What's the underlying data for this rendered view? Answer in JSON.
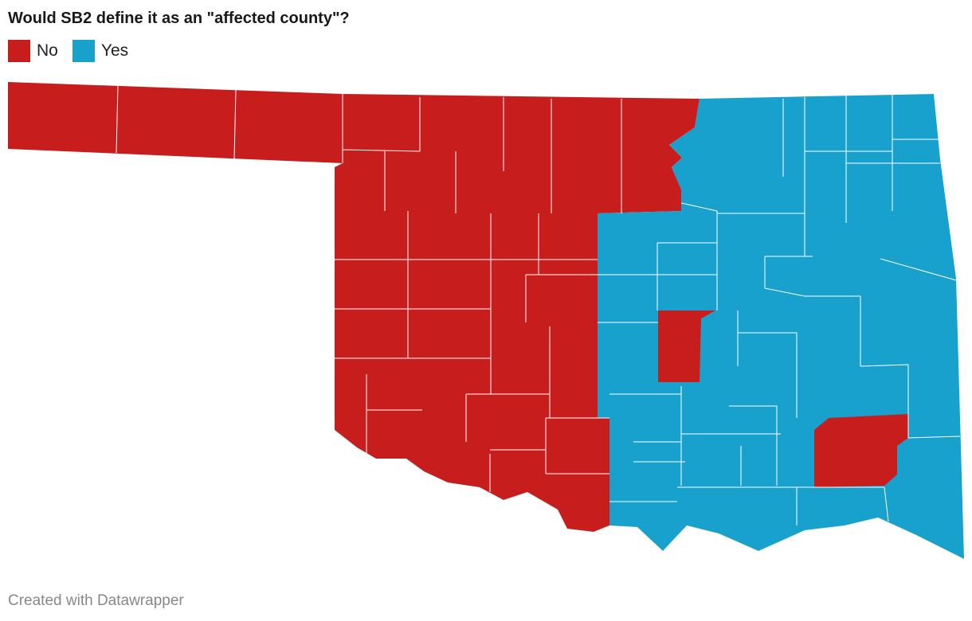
{
  "title": "Would SB2 define it as an \"affected county\"?",
  "legend": [
    {
      "label": "No",
      "color": "#c71e1d"
    },
    {
      "label": "Yes",
      "color": "#18a1cd"
    }
  ],
  "footer": "Created with Datawrapper"
}
